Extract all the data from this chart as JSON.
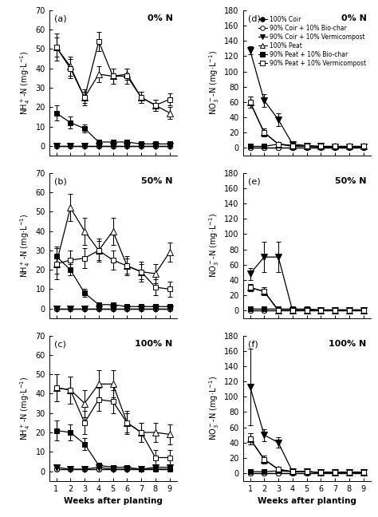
{
  "weeks": [
    1,
    2,
    3,
    4,
    5,
    6,
    7,
    8,
    9
  ],
  "panels": {
    "a": {
      "title": "0% N",
      "ylabel": "NH$_4^+$-N (mg·L$^{-1}$)",
      "ylim": [
        -5,
        70
      ],
      "yticks": [
        0,
        10,
        20,
        30,
        40,
        50,
        60,
        70
      ],
      "series": {
        "coir": {
          "y": [
            0,
            0,
            0,
            0,
            0,
            0,
            0,
            0,
            0
          ],
          "yerr": [
            0,
            0,
            0,
            0,
            0,
            0,
            0,
            0,
            0
          ]
        },
        "coir_bio": {
          "y": [
            0,
            0,
            0,
            0,
            0,
            0,
            0,
            0,
            0
          ],
          "yerr": [
            0,
            0,
            0,
            0,
            0,
            0,
            0,
            0,
            0
          ]
        },
        "coir_verm": {
          "y": [
            0,
            0,
            0,
            0,
            0,
            0,
            0,
            0,
            0
          ],
          "yerr": [
            0,
            0,
            0,
            0,
            0,
            0,
            0,
            0,
            0
          ]
        },
        "peat": {
          "y": [
            51,
            41,
            25,
            37,
            36,
            37,
            25,
            21,
            17
          ],
          "yerr": [
            5,
            5,
            3,
            4,
            4,
            3,
            3,
            3,
            3
          ]
        },
        "peat_bio": {
          "y": [
            17,
            12,
            9,
            2,
            2,
            2,
            1,
            1,
            1
          ],
          "yerr": [
            4,
            3,
            2,
            1,
            1,
            1,
            0.5,
            0.5,
            0.5
          ]
        },
        "peat_verm": {
          "y": [
            51,
            40,
            25,
            54,
            36,
            36,
            25,
            21,
            24
          ],
          "yerr": [
            7,
            5,
            4,
            5,
            4,
            4,
            3,
            3,
            3
          ]
        }
      }
    },
    "b": {
      "title": "50% N",
      "ylabel": "NH$_4^+$-N (mg·L$^{-1}$)",
      "ylim": [
        -5,
        70
      ],
      "yticks": [
        0,
        10,
        20,
        30,
        40,
        50,
        60,
        70
      ],
      "series": {
        "coir": {
          "y": [
            0,
            0,
            0,
            0,
            0,
            0,
            0,
            0,
            0
          ],
          "yerr": [
            0,
            0,
            0,
            0,
            0,
            0,
            0,
            0,
            0
          ]
        },
        "coir_bio": {
          "y": [
            0,
            0,
            0,
            0,
            0,
            0,
            0,
            0,
            0
          ],
          "yerr": [
            0,
            0,
            0,
            0,
            0,
            0,
            0,
            0,
            0
          ]
        },
        "coir_verm": {
          "y": [
            0,
            0,
            0,
            0,
            0,
            0,
            0,
            0,
            0
          ],
          "yerr": [
            0,
            0,
            0,
            0,
            0,
            0,
            0,
            0,
            0
          ]
        },
        "peat": {
          "y": [
            23,
            52,
            40,
            30,
            40,
            22,
            19,
            18,
            29
          ],
          "yerr": [
            8,
            7,
            7,
            6,
            7,
            5,
            5,
            5,
            5
          ]
        },
        "peat_bio": {
          "y": [
            27,
            20,
            8,
            2,
            2,
            1,
            1,
            1,
            1
          ],
          "yerr": [
            5,
            3,
            2,
            1,
            1,
            1,
            0.5,
            0.5,
            0.5
          ]
        },
        "peat_verm": {
          "y": [
            23,
            25,
            26,
            30,
            25,
            22,
            19,
            11,
            10
          ],
          "yerr": [
            5,
            5,
            5,
            5,
            5,
            4,
            4,
            4,
            4
          ]
        }
      }
    },
    "c": {
      "title": "100% N",
      "ylabel": "NH$_4^+$-N (mg·L$^{-1}$)",
      "xlabel": "Weeks after planting",
      "ylim": [
        -5,
        70
      ],
      "yticks": [
        0,
        10,
        20,
        30,
        40,
        50,
        60,
        70
      ],
      "series": {
        "coir": {
          "y": [
            1,
            1,
            1,
            1,
            1,
            1,
            1,
            1,
            1
          ],
          "yerr": [
            0.5,
            0.5,
            0.5,
            0.5,
            0.5,
            0.5,
            0.5,
            0.5,
            0.5
          ]
        },
        "coir_bio": {
          "y": [
            1,
            1,
            1,
            1,
            1,
            1,
            1,
            1,
            1
          ],
          "yerr": [
            0.5,
            0.5,
            0.5,
            0.5,
            0.5,
            0.5,
            0.5,
            0.5,
            0.5
          ]
        },
        "coir_verm": {
          "y": [
            2,
            1,
            1,
            2,
            1,
            1,
            1,
            2,
            2
          ],
          "yerr": [
            0.5,
            0.5,
            0.5,
            0.5,
            0.5,
            0.5,
            0.5,
            0.5,
            0.5
          ]
        },
        "peat": {
          "y": [
            43,
            42,
            35,
            45,
            45,
            25,
            20,
            20,
            19
          ],
          "yerr": [
            7,
            7,
            7,
            7,
            7,
            6,
            5,
            5,
            5
          ]
        },
        "peat_bio": {
          "y": [
            21,
            20,
            14,
            3,
            2,
            2,
            1,
            1,
            1
          ],
          "yerr": [
            5,
            4,
            3,
            1,
            1,
            1,
            0.5,
            0.5,
            0.5
          ]
        },
        "peat_verm": {
          "y": [
            43,
            42,
            25,
            37,
            36,
            25,
            20,
            7,
            7
          ],
          "yerr": [
            7,
            7,
            6,
            6,
            6,
            5,
            5,
            4,
            4
          ]
        }
      }
    },
    "d": {
      "title": "0% N",
      "ylabel": "NO$_3^-$-N (mg·L$^{-1}$)",
      "ylim": [
        -10,
        180
      ],
      "yticks": [
        0,
        20,
        40,
        60,
        80,
        100,
        120,
        140,
        160,
        180
      ],
      "series": {
        "coir": {
          "y": [
            0,
            0,
            0,
            0,
            0,
            0,
            0,
            0,
            0
          ],
          "yerr": [
            0,
            0,
            0,
            0,
            0,
            0,
            0,
            0,
            0
          ]
        },
        "coir_bio": {
          "y": [
            0,
            0,
            0,
            0,
            0,
            0,
            0,
            0,
            0
          ],
          "yerr": [
            0,
            0,
            0,
            0,
            0,
            0,
            0,
            0,
            0
          ]
        },
        "coir_verm": {
          "y": [
            128,
            62,
            37,
            5,
            3,
            2,
            1,
            1,
            1
          ],
          "yerr": [
            5,
            8,
            8,
            2,
            1,
            1,
            1,
            1,
            1
          ]
        },
        "peat": {
          "y": [
            60,
            20,
            5,
            3,
            2,
            2,
            2,
            2,
            2
          ],
          "yerr": [
            7,
            5,
            3,
            2,
            1,
            1,
            1,
            1,
            1
          ]
        },
        "peat_bio": {
          "y": [
            2,
            2,
            5,
            3,
            2,
            1,
            1,
            1,
            1
          ],
          "yerr": [
            1,
            1,
            2,
            1,
            1,
            0.5,
            0.5,
            0.5,
            0.5
          ]
        },
        "peat_verm": {
          "y": [
            60,
            20,
            5,
            2,
            2,
            2,
            2,
            2,
            2
          ],
          "yerr": [
            7,
            5,
            3,
            2,
            1,
            1,
            1,
            1,
            1
          ]
        }
      }
    },
    "e": {
      "title": "50% N",
      "ylabel": "NO$_3^-$-N (mg·L$^{-1}$)",
      "ylim": [
        -10,
        180
      ],
      "yticks": [
        0,
        20,
        40,
        60,
        80,
        100,
        120,
        140,
        160,
        180
      ],
      "series": {
        "coir": {
          "y": [
            0,
            0,
            0,
            0,
            0,
            0,
            0,
            0,
            0
          ],
          "yerr": [
            0,
            0,
            0,
            0,
            0,
            0,
            0,
            0,
            0
          ]
        },
        "coir_bio": {
          "y": [
            0,
            0,
            0,
            0,
            0,
            0,
            0,
            0,
            0
          ],
          "yerr": [
            0,
            0,
            0,
            0,
            0,
            0,
            0,
            0,
            0
          ]
        },
        "coir_verm": {
          "y": [
            48,
            70,
            70,
            0,
            0,
            0,
            0,
            0,
            0
          ],
          "yerr": [
            8,
            20,
            20,
            0,
            0,
            0,
            0,
            0,
            0
          ]
        },
        "peat": {
          "y": [
            30,
            25,
            0,
            0,
            0,
            0,
            0,
            0,
            0
          ],
          "yerr": [
            5,
            5,
            0,
            0,
            0,
            0,
            0,
            0,
            0
          ]
        },
        "peat_bio": {
          "y": [
            2,
            2,
            2,
            2,
            2,
            1,
            1,
            1,
            1
          ],
          "yerr": [
            1,
            1,
            1,
            1,
            1,
            0.5,
            0.5,
            0.5,
            0.5
          ]
        },
        "peat_verm": {
          "y": [
            30,
            25,
            0,
            0,
            0,
            0,
            0,
            0,
            0
          ],
          "yerr": [
            5,
            5,
            0,
            0,
            0,
            0,
            0,
            0,
            0
          ]
        }
      }
    },
    "f": {
      "title": "100% N",
      "ylabel": "NO$_3^-$-N (mg·L$^{-1}$)",
      "xlabel": "Weeks after planting",
      "ylim": [
        -10,
        180
      ],
      "yticks": [
        0,
        20,
        40,
        60,
        80,
        100,
        120,
        140,
        160,
        180
      ],
      "series": {
        "coir": {
          "y": [
            0,
            0,
            0,
            0,
            0,
            0,
            0,
            0,
            0
          ],
          "yerr": [
            0,
            0,
            0,
            0,
            0,
            0,
            0,
            0,
            0
          ]
        },
        "coir_bio": {
          "y": [
            0,
            0,
            0,
            0,
            0,
            0,
            0,
            0,
            0
          ],
          "yerr": [
            0,
            0,
            0,
            0,
            0,
            0,
            0,
            0,
            0
          ]
        },
        "coir_verm": {
          "y": [
            113,
            50,
            40,
            2,
            2,
            1,
            1,
            1,
            1
          ],
          "yerr": [
            50,
            8,
            7,
            1,
            1,
            1,
            1,
            1,
            1
          ]
        },
        "peat": {
          "y": [
            45,
            18,
            5,
            2,
            2,
            1,
            1,
            1,
            1
          ],
          "yerr": [
            7,
            5,
            3,
            1,
            1,
            1,
            1,
            1,
            1
          ]
        },
        "peat_bio": {
          "y": [
            2,
            2,
            3,
            2,
            2,
            1,
            1,
            1,
            1
          ],
          "yerr": [
            1,
            1,
            1,
            1,
            1,
            0.5,
            0.5,
            0.5,
            0.5
          ]
        },
        "peat_verm": {
          "y": [
            45,
            18,
            5,
            2,
            2,
            1,
            1,
            1,
            1
          ],
          "yerr": [
            7,
            5,
            3,
            1,
            1,
            1,
            1,
            1,
            1
          ]
        }
      }
    }
  },
  "series_styles": {
    "coir": {
      "marker": "o",
      "markerfacecolor": "black",
      "markeredgecolor": "black",
      "linestyle": "-",
      "color": "black",
      "markersize": 4.5,
      "label": "100% Coir"
    },
    "coir_bio": {
      "marker": "o",
      "markerfacecolor": "white",
      "markeredgecolor": "black",
      "linestyle": "-",
      "color": "black",
      "markersize": 4.5,
      "label": "90% Coir + 10% Bio-char"
    },
    "coir_verm": {
      "marker": "v",
      "markerfacecolor": "black",
      "markeredgecolor": "black",
      "linestyle": "-",
      "color": "black",
      "markersize": 5.5,
      "label": "90% Coir + 10% Vermicompost"
    },
    "peat": {
      "marker": "^",
      "markerfacecolor": "white",
      "markeredgecolor": "black",
      "linestyle": "-",
      "color": "black",
      "markersize": 5.5,
      "label": "100% Peat"
    },
    "peat_bio": {
      "marker": "s",
      "markerfacecolor": "black",
      "markeredgecolor": "black",
      "linestyle": "-",
      "color": "black",
      "markersize": 4.5,
      "label": "90% Peat + 10% Bio-char"
    },
    "peat_verm": {
      "marker": "s",
      "markerfacecolor": "white",
      "markeredgecolor": "black",
      "linestyle": "-",
      "color": "black",
      "markersize": 4.5,
      "label": "90% Peat + 10% Vermicompost"
    }
  },
  "series_order": [
    "coir",
    "coir_bio",
    "coir_verm",
    "peat",
    "peat_bio",
    "peat_verm"
  ],
  "panel_labels": [
    "(a)",
    "(b)",
    "(c)",
    "(d)",
    "(e)",
    "(f)"
  ]
}
